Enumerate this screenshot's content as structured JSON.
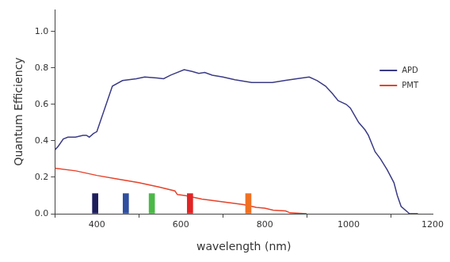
{
  "chart_data": {
    "type": "line",
    "x_label": "wavelength (nm)",
    "y_label": "Quantum Efficiency",
    "xlim": [
      300,
      1200
    ],
    "xticks": [
      400,
      600,
      800,
      1000,
      1200
    ],
    "ylim": [
      0,
      1.12
    ],
    "yticks": [
      {
        "value": 0,
        "label": "0.0"
      },
      0.2,
      0.4,
      0.6,
      0.8,
      {
        "value": 1,
        "label": "1.0"
      }
    ],
    "grid": false,
    "legend": "upper right",
    "series": [
      {
        "name": "APD",
        "color": "#3b3b86",
        "x": [
          300,
          308,
          320,
          331,
          349,
          367,
          375,
          382,
          392,
          400,
          437,
          461,
          494,
          514,
          543,
          559,
          576,
          608,
          627,
          643,
          657,
          675,
          700,
          729,
          769,
          818,
          847,
          876,
          906,
          925,
          945,
          961,
          975,
          994,
          1004,
          1014,
          1024,
          1039,
          1047,
          1063,
          1076,
          1092,
          1108,
          1116,
          1125,
          1145,
          1165
        ],
        "values": [
          0.35,
          0.37,
          0.41,
          0.42,
          0.42,
          0.43,
          0.43,
          0.42,
          0.44,
          0.45,
          0.7,
          0.73,
          0.74,
          0.75,
          0.745,
          0.74,
          0.76,
          0.79,
          0.78,
          0.77,
          0.775,
          0.76,
          0.75,
          0.735,
          0.72,
          0.72,
          0.73,
          0.74,
          0.75,
          0.73,
          0.7,
          0.66,
          0.62,
          0.6,
          0.58,
          0.54,
          0.5,
          0.46,
          0.43,
          0.34,
          0.3,
          0.24,
          0.17,
          0.1,
          0.04,
          0.0,
          0.0
        ]
      },
      {
        "name": "PMT",
        "color": "#e5432b",
        "x": [
          300,
          350,
          400,
          450,
          500,
          550,
          586,
          592,
          610,
          650,
          700,
          750,
          780,
          800,
          820,
          850,
          860,
          900
        ],
        "values": [
          0.25,
          0.235,
          0.21,
          0.19,
          0.17,
          0.145,
          0.125,
          0.105,
          0.1,
          0.08,
          0.065,
          0.05,
          0.035,
          0.03,
          0.02,
          0.015,
          0.005,
          0.0
        ]
      },
      {
        "type": "bar",
        "colors": [
          "#1e1e5c",
          "#2f4f9f",
          "#4cb848",
          "#e02424",
          "#f07022"
        ],
        "x": [
          396,
          469,
          531,
          622,
          761
        ],
        "values": [
          0.11,
          0.11,
          0.11,
          0.11,
          0.11
        ]
      }
    ]
  }
}
